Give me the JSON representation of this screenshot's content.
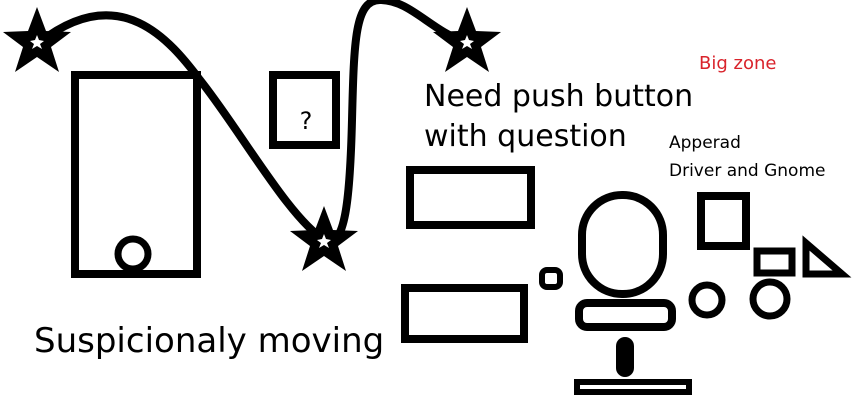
{
  "colors": {
    "ink": "#000000",
    "accent": "#d9232b",
    "background": "#ffffff"
  },
  "labels": {
    "question_mark": "?",
    "need_push_line1": "Need push button",
    "need_push_line2": "with question",
    "big_zone": "Big zone",
    "apperad_line1": "Apperad",
    "apperad_line2": "Driver and Gnome",
    "suspicious": "Suspicionaly moving"
  },
  "icons": [
    "star-icon",
    "question-box-icon",
    "person-figure-icon"
  ]
}
